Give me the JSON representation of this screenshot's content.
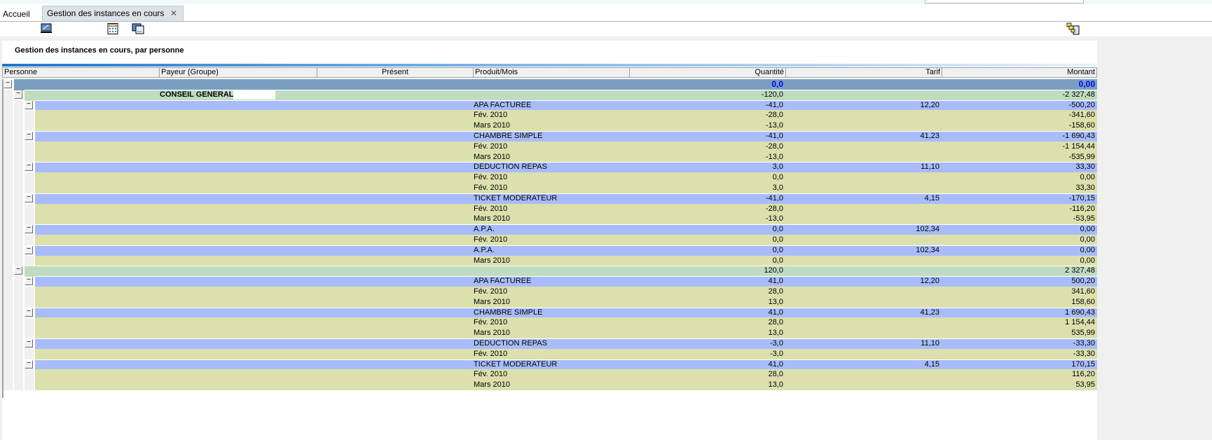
{
  "tabs": {
    "home": "Accueil",
    "active": "Gestion des instances en cours",
    "close": "✕"
  },
  "toolbar": {
    "icons": [
      "monitor-icon",
      "calculator-icon",
      "windows-icon",
      "hierarchy-export-icon"
    ]
  },
  "panel": {
    "title": "Gestion des instances en cours, par personne"
  },
  "columns": [
    "Personne",
    "Payeur (Groupe)",
    "Présent",
    "Produit/Mois",
    "Quantité",
    "Tarif",
    "Montant"
  ],
  "colors": {
    "total": "#7a9ec0",
    "group": "#c0dcc0",
    "product": "#a8bcfc",
    "detail": "#dce0ac",
    "total_text": "#0000ff"
  },
  "rows": [
    {
      "level": 0,
      "type": "total",
      "quantite": "0,0",
      "montant": "0,00"
    },
    {
      "level": 1,
      "type": "group",
      "payeur": "CONSEIL GENERAL",
      "quantite": "-120,0",
      "montant": "-2 327,48"
    },
    {
      "level": 2,
      "type": "product",
      "produit": "APA FACTUREE",
      "quantite": "-41,0",
      "tarif": "12,20",
      "montant": "-500,20"
    },
    {
      "level": 3,
      "type": "detail",
      "produit": "Fév. 2010",
      "quantite": "-28,0",
      "montant": "-341,60"
    },
    {
      "level": 3,
      "type": "detail",
      "produit": "Mars 2010",
      "quantite": "-13,0",
      "montant": "-158,60"
    },
    {
      "level": 2,
      "type": "product",
      "produit": "CHAMBRE SIMPLE",
      "quantite": "-41,0",
      "tarif": "41,23",
      "montant": "-1 690,43"
    },
    {
      "level": 3,
      "type": "detail",
      "produit": "Fév. 2010",
      "quantite": "-28,0",
      "montant": "-1 154,44"
    },
    {
      "level": 3,
      "type": "detail",
      "produit": "Mars 2010",
      "quantite": "-13,0",
      "montant": "-535,99"
    },
    {
      "level": 2,
      "type": "product",
      "produit": "DEDUCTION REPAS",
      "quantite": "3,0",
      "tarif": "11,10",
      "montant": "33,30"
    },
    {
      "level": 3,
      "type": "detail",
      "produit": "Fév. 2010",
      "quantite": "0,0",
      "montant": "0,00"
    },
    {
      "level": 3,
      "type": "detail",
      "produit": "Fév. 2010",
      "quantite": "3,0",
      "montant": "33,30"
    },
    {
      "level": 2,
      "type": "product",
      "produit": "TICKET MODERATEUR",
      "quantite": "-41,0",
      "tarif": "4,15",
      "montant": "-170,15"
    },
    {
      "level": 3,
      "type": "detail",
      "produit": "Fév. 2010",
      "quantite": "-28,0",
      "montant": "-116,20"
    },
    {
      "level": 3,
      "type": "detail",
      "produit": "Mars 2010",
      "quantite": "-13,0",
      "montant": "-53,95"
    },
    {
      "level": 2,
      "type": "product",
      "produit": "A.P.A.",
      "quantite": "0,0",
      "tarif": "102,34",
      "montant": "0,00"
    },
    {
      "level": 3,
      "type": "detail",
      "produit": "Fév. 2010",
      "quantite": "0,0",
      "montant": "0,00"
    },
    {
      "level": 2,
      "type": "product",
      "produit": "A.P.A.",
      "quantite": "0,0",
      "tarif": "102,34",
      "montant": "0,00"
    },
    {
      "level": 3,
      "type": "detail",
      "produit": "Mars 2010",
      "quantite": "0,0",
      "montant": "0,00"
    },
    {
      "level": 1,
      "type": "group",
      "payeur": "",
      "quantite": "120,0",
      "montant": "2 327,48"
    },
    {
      "level": 2,
      "type": "product",
      "produit": "APA FACTUREE",
      "quantite": "41,0",
      "tarif": "12,20",
      "montant": "500,20"
    },
    {
      "level": 3,
      "type": "detail",
      "produit": "Fév. 2010",
      "quantite": "28,0",
      "montant": "341,60"
    },
    {
      "level": 3,
      "type": "detail",
      "produit": "Mars 2010",
      "quantite": "13,0",
      "montant": "158,60"
    },
    {
      "level": 2,
      "type": "product",
      "produit": "CHAMBRE SIMPLE",
      "quantite": "41,0",
      "tarif": "41,23",
      "montant": "1 690,43"
    },
    {
      "level": 3,
      "type": "detail",
      "produit": "Fév. 2010",
      "quantite": "28,0",
      "montant": "1 154,44"
    },
    {
      "level": 3,
      "type": "detail",
      "produit": "Mars 2010",
      "quantite": "13,0",
      "montant": "535,99"
    },
    {
      "level": 2,
      "type": "product",
      "produit": "DEDUCTION REPAS",
      "quantite": "-3,0",
      "tarif": "11,10",
      "montant": "-33,30"
    },
    {
      "level": 3,
      "type": "detail",
      "produit": "Fév. 2010",
      "quantite": "-3,0",
      "montant": "-33,30"
    },
    {
      "level": 2,
      "type": "product",
      "produit": "TICKET MODERATEUR",
      "quantite": "41,0",
      "tarif": "4,15",
      "montant": "170,15"
    },
    {
      "level": 3,
      "type": "detail",
      "produit": "Fév. 2010",
      "quantite": "28,0",
      "montant": "116,20"
    },
    {
      "level": 3,
      "type": "detail",
      "produit": "Mars 2010",
      "quantite": "13,0",
      "montant": "53,95"
    }
  ]
}
